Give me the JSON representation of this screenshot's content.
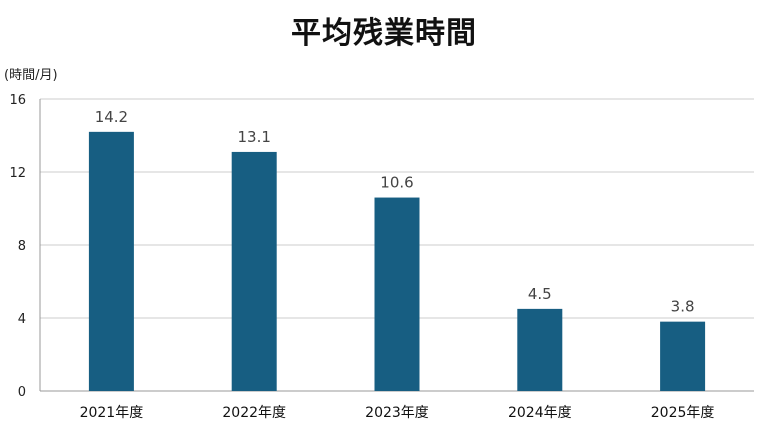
{
  "chart_data": {
    "type": "bar",
    "title": "平均残業時間",
    "unit_label": "(時間/月)",
    "categories": [
      "2021年度",
      "2022年度",
      "2023年度",
      "2024年度",
      "2025年度"
    ],
    "values": [
      14.2,
      13.1,
      10.6,
      4.5,
      3.8
    ],
    "value_labels": [
      "14.2",
      "13.1",
      "10.6",
      "4.5",
      "3.8"
    ],
    "yticks": [
      0,
      4,
      8,
      12,
      16
    ],
    "ylim": [
      0,
      16
    ],
    "grid": true,
    "legend": "none",
    "bar_color": "#175e82",
    "grid_color": "#cccccc",
    "axis_color": "#999999"
  }
}
